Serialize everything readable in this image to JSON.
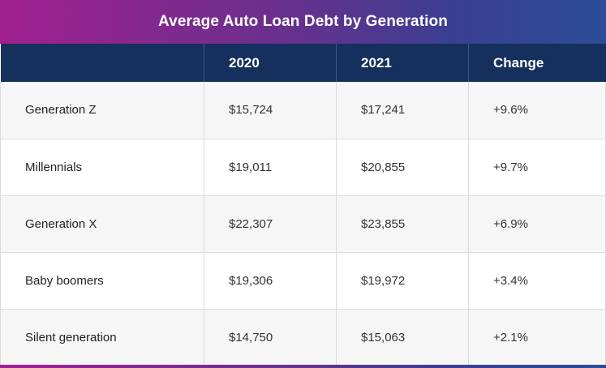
{
  "chart_data": {
    "type": "table",
    "title": "Average Auto Loan Debt by Generation",
    "columns": [
      "",
      "2020",
      "2021",
      "Change"
    ],
    "rows": [
      [
        "Generation Z",
        "$15,724",
        "$17,241",
        "+9.6%"
      ],
      [
        "Millennials",
        "$19,011",
        "$20,855",
        "+9.7%"
      ],
      [
        "Generation X",
        "$22,307",
        "$23,855",
        "+6.9%"
      ],
      [
        "Baby boomers",
        "$19,306",
        "$19,972",
        "+3.4%"
      ],
      [
        "Silent generation",
        "$14,750",
        "$15,063",
        "+2.1%"
      ]
    ]
  },
  "colors": {
    "header_bg": "#15305c",
    "gradient_start": "#a0208f",
    "gradient_end": "#2c4c96"
  }
}
